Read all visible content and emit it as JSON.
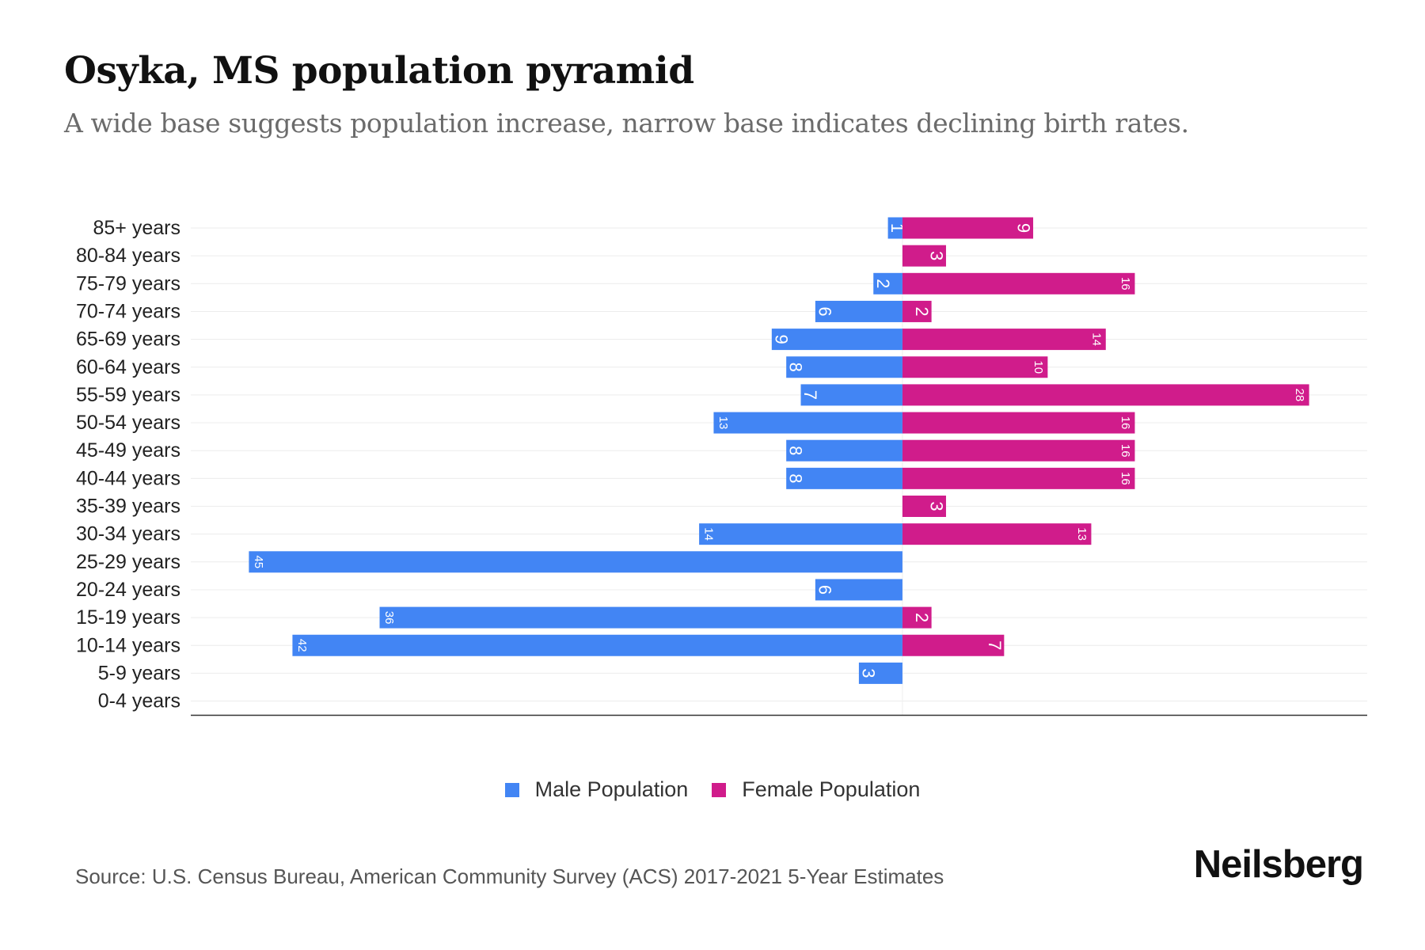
{
  "header": {
    "title": "Osyka, MS population pyramid",
    "subtitle": "A wide base suggests population increase, narrow base indicates declining birth rates."
  },
  "footer": {
    "source": "Source: U.S. Census Bureau, American Community Survey (ACS) 2017-2021 5-Year Estimates",
    "brand": "Neilsberg"
  },
  "colors": {
    "male": "#4285F4",
    "female": "#D01C8B"
  },
  "chart_data": {
    "type": "bar",
    "orientation": "horizontal-diverging",
    "title": "Osyka, MS population pyramid",
    "categories": [
      "85+ years",
      "80-84 years",
      "75-79 years",
      "70-74 years",
      "65-69 years",
      "60-64 years",
      "55-59 years",
      "50-54 years",
      "45-49 years",
      "40-44 years",
      "35-39 years",
      "30-34 years",
      "25-29 years",
      "20-24 years",
      "15-19 years",
      "10-14 years",
      "5-9 years",
      "0-4 years"
    ],
    "series": [
      {
        "name": "Male Population",
        "values": [
          1,
          0,
          2,
          6,
          9,
          8,
          7,
          13,
          8,
          8,
          0,
          14,
          45,
          6,
          36,
          42,
          3,
          0
        ]
      },
      {
        "name": "Female Population",
        "values": [
          9,
          3,
          16,
          2,
          14,
          10,
          28,
          16,
          16,
          16,
          3,
          13,
          0,
          0,
          2,
          7,
          0,
          0
        ]
      }
    ],
    "xlim": [
      -49,
      32
    ],
    "legend": "bottom-center",
    "grid": true
  }
}
